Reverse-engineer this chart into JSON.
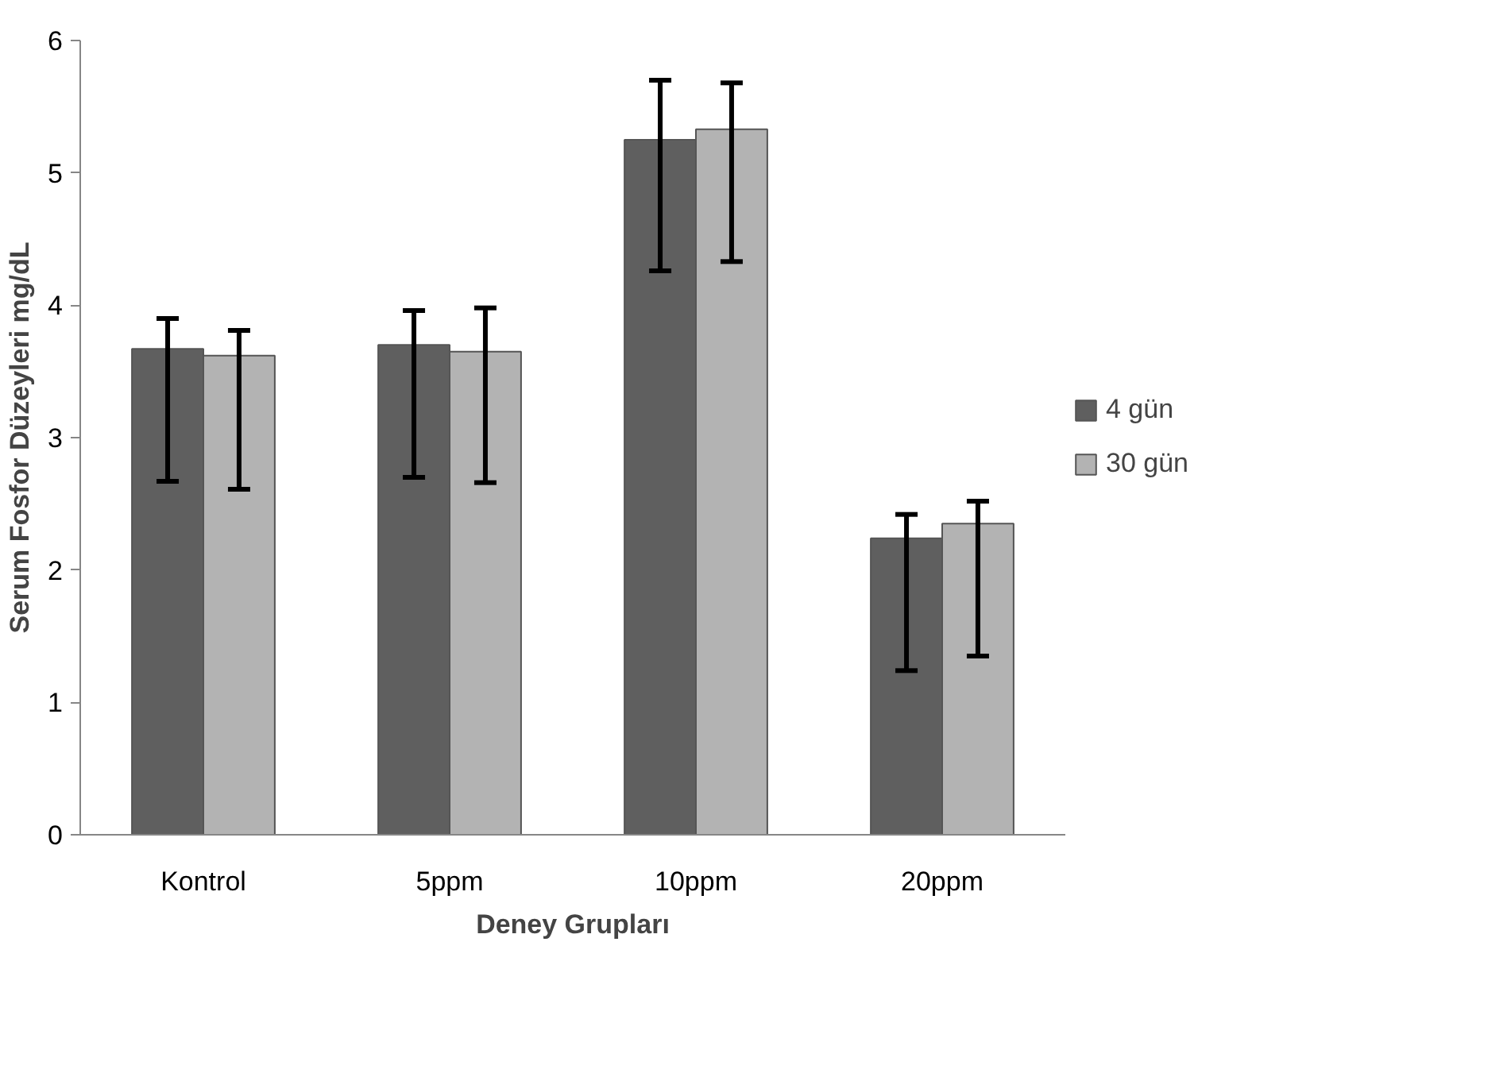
{
  "chart_data": {
    "type": "bar",
    "xlabel": "Deney Grupları",
    "ylabel": "Serum Fosfor Düzeyleri mg/dL",
    "categories": [
      "Kontrol",
      "5ppm",
      "10ppm",
      "20ppm"
    ],
    "series": [
      {
        "name": "4 gün",
        "color": "#5f5f5f",
        "values": [
          3.67,
          3.7,
          5.25,
          2.24
        ],
        "errors": [
          [
            2.67,
            3.9
          ],
          [
            2.7,
            3.96
          ],
          [
            4.26,
            5.7
          ],
          [
            1.24,
            2.42
          ]
        ]
      },
      {
        "name": "30 gün",
        "color": "#b3b3b3",
        "values": [
          3.62,
          3.65,
          5.33,
          2.35
        ],
        "errors": [
          [
            2.61,
            3.81
          ],
          [
            2.66,
            3.98
          ],
          [
            4.33,
            5.68
          ],
          [
            1.35,
            2.52
          ]
        ]
      }
    ],
    "ylim": [
      0,
      6
    ],
    "yticks": [
      0,
      1,
      2,
      3,
      4,
      5,
      6
    ],
    "grid": false,
    "legend": "right"
  }
}
